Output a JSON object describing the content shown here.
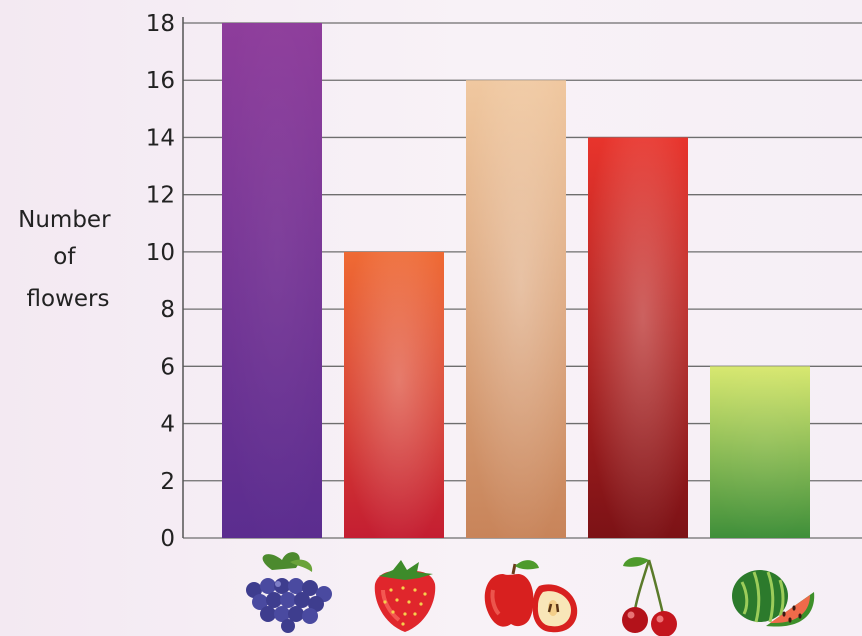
{
  "chart_data": {
    "type": "bar",
    "ylabel": [
      "Number",
      "of",
      "flowers"
    ],
    "categories": [
      "grapes",
      "strawberry",
      "apple",
      "cherries",
      "watermelon"
    ],
    "values": [
      18,
      10,
      16,
      14,
      6
    ],
    "ylim": [
      0,
      18
    ],
    "yticks": [
      0,
      2,
      4,
      6,
      8,
      10,
      12,
      14,
      16,
      18
    ],
    "grid": true,
    "bar_colors": [
      [
        "#8e3d9b",
        "#5b2d8f"
      ],
      [
        "#ef6a34",
        "#c41e32"
      ],
      [
        "#f0c8a0",
        "#c8845a"
      ],
      [
        "#e8342c",
        "#7c1216"
      ],
      [
        "#d8e870",
        "#3f8f3a"
      ]
    ],
    "category_icons": [
      "grapes-icon",
      "strawberry-icon",
      "apple-icon",
      "cherries-icon",
      "watermelon-icon"
    ]
  }
}
